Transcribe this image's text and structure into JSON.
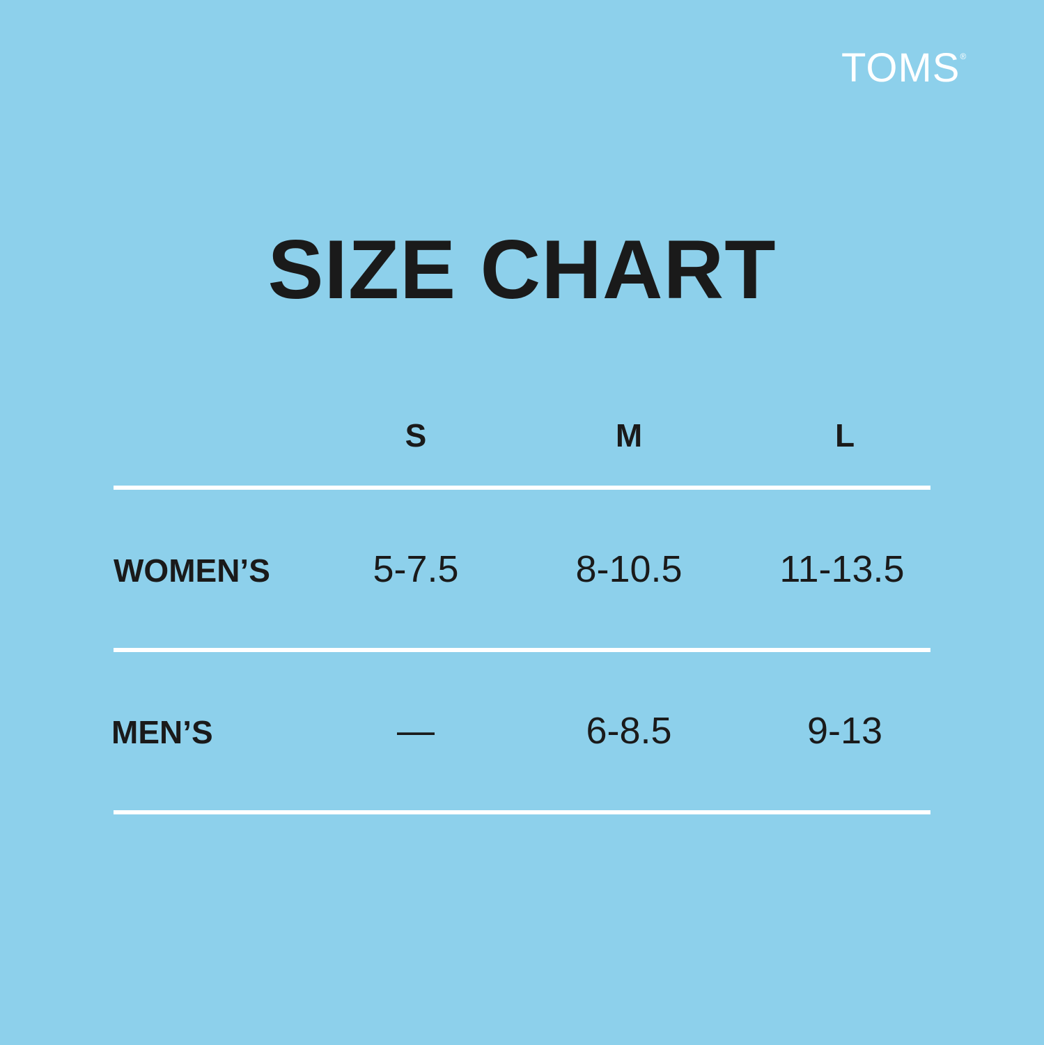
{
  "brand": "TOMS",
  "brand_mark": "®",
  "title": "SIZE CHART",
  "table": {
    "header": [
      "S",
      "M",
      "L"
    ],
    "rows": [
      [
        "WOMEN’S",
        "5-7.5",
        "8-10.5",
        "11-13.5"
      ],
      [
        "MEN’S",
        "—",
        "6-8.5",
        "9-13"
      ]
    ]
  }
}
